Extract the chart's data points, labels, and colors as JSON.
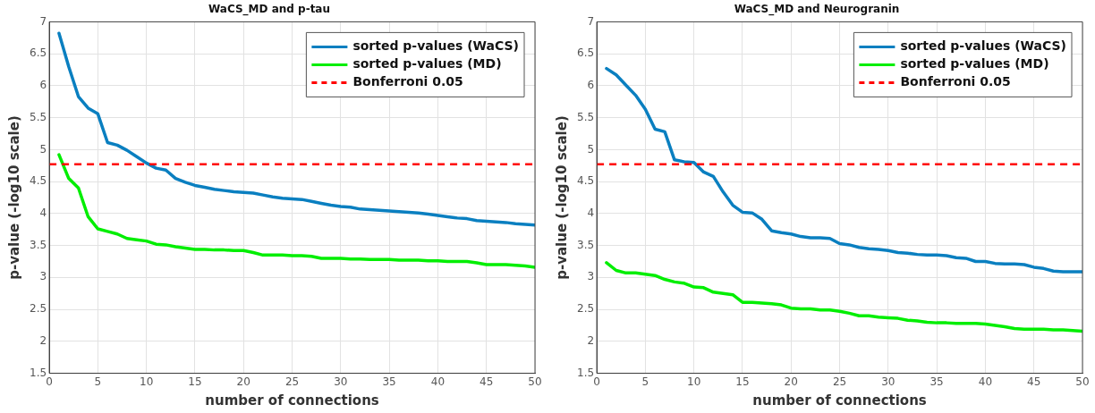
{
  "chart_data": [
    {
      "type": "line",
      "title": "WaCS_MD and p-tau",
      "xlabel": "number of connections",
      "ylabel": "p-value (-log10 scale)",
      "x": [
        1,
        2,
        3,
        4,
        5,
        6,
        7,
        8,
        9,
        10,
        11,
        12,
        13,
        14,
        15,
        16,
        17,
        18,
        19,
        20,
        21,
        22,
        23,
        24,
        25,
        26,
        27,
        28,
        29,
        30,
        31,
        32,
        33,
        34,
        35,
        36,
        37,
        38,
        39,
        40,
        41,
        42,
        43,
        44,
        45,
        46,
        47,
        48,
        49,
        50
      ],
      "series": [
        {
          "name": "sorted p-values (WaCS)",
          "color": "#0a7fc0",
          "values": [
            6.82,
            6.3,
            5.83,
            5.65,
            5.56,
            5.11,
            5.07,
            4.99,
            4.89,
            4.79,
            4.71,
            4.68,
            4.55,
            4.49,
            4.44,
            4.41,
            4.38,
            4.36,
            4.34,
            4.33,
            4.32,
            4.29,
            4.26,
            4.24,
            4.23,
            4.22,
            4.19,
            4.16,
            4.13,
            4.11,
            4.1,
            4.07,
            4.06,
            4.05,
            4.04,
            4.03,
            4.02,
            4.01,
            3.99,
            3.97,
            3.95,
            3.93,
            3.92,
            3.89,
            3.88,
            3.87,
            3.86,
            3.84,
            3.83,
            3.82
          ]
        },
        {
          "name": "sorted p-values (MD)",
          "color": "#00ee00",
          "values": [
            4.92,
            4.55,
            4.4,
            3.95,
            3.76,
            3.72,
            3.68,
            3.61,
            3.59,
            3.57,
            3.52,
            3.51,
            3.48,
            3.46,
            3.44,
            3.44,
            3.43,
            3.43,
            3.42,
            3.42,
            3.39,
            3.35,
            3.35,
            3.35,
            3.34,
            3.34,
            3.33,
            3.3,
            3.3,
            3.3,
            3.29,
            3.29,
            3.28,
            3.28,
            3.28,
            3.27,
            3.27,
            3.27,
            3.26,
            3.26,
            3.25,
            3.25,
            3.25,
            3.23,
            3.2,
            3.2,
            3.2,
            3.19,
            3.18,
            3.16
          ]
        }
      ],
      "ref_lines": [
        {
          "axis": "y",
          "value": 4.77,
          "label": "Bonferroni 0.05",
          "color": "#ff0000",
          "line_style": "dashed"
        }
      ],
      "xlim": [
        0,
        50
      ],
      "xticks": [
        0,
        5,
        10,
        15,
        20,
        25,
        30,
        35,
        40,
        45,
        50
      ],
      "ylim": [
        1.5,
        7
      ],
      "yticks": [
        1.5,
        2,
        2.5,
        3,
        3.5,
        4,
        4.5,
        5,
        5.5,
        6,
        6.5,
        7
      ],
      "grid": true,
      "legend": "top right",
      "line_style": "solid"
    },
    {
      "type": "line",
      "title": "WaCS_MD and Neurogranin",
      "xlabel": "number of connections",
      "ylabel": "p-value (-log10 scale)",
      "x": [
        1,
        2,
        3,
        4,
        5,
        6,
        7,
        8,
        9,
        10,
        11,
        12,
        13,
        14,
        15,
        16,
        17,
        18,
        19,
        20,
        21,
        22,
        23,
        24,
        25,
        26,
        27,
        28,
        29,
        30,
        31,
        32,
        33,
        34,
        35,
        36,
        37,
        38,
        39,
        40,
        41,
        42,
        43,
        44,
        45,
        46,
        47,
        48,
        49,
        50
      ],
      "series": [
        {
          "name": "sorted p-values (WaCS)",
          "color": "#0a7fc0",
          "values": [
            6.27,
            6.17,
            6.01,
            5.85,
            5.63,
            5.32,
            5.28,
            4.84,
            4.81,
            4.8,
            4.65,
            4.58,
            4.34,
            4.13,
            4.02,
            4.01,
            3.91,
            3.73,
            3.7,
            3.68,
            3.64,
            3.62,
            3.62,
            3.61,
            3.53,
            3.51,
            3.47,
            3.45,
            3.44,
            3.42,
            3.39,
            3.38,
            3.36,
            3.35,
            3.35,
            3.34,
            3.31,
            3.3,
            3.25,
            3.25,
            3.22,
            3.21,
            3.21,
            3.2,
            3.16,
            3.14,
            3.1,
            3.09,
            3.09,
            3.09
          ]
        },
        {
          "name": "sorted p-values (MD)",
          "color": "#00ee00",
          "values": [
            3.23,
            3.11,
            3.07,
            3.07,
            3.05,
            3.03,
            2.97,
            2.93,
            2.91,
            2.85,
            2.84,
            2.77,
            2.75,
            2.73,
            2.61,
            2.61,
            2.6,
            2.59,
            2.57,
            2.52,
            2.51,
            2.51,
            2.49,
            2.49,
            2.47,
            2.44,
            2.4,
            2.4,
            2.38,
            2.37,
            2.36,
            2.33,
            2.32,
            2.3,
            2.29,
            2.29,
            2.28,
            2.28,
            2.28,
            2.27,
            2.25,
            2.23,
            2.2,
            2.19,
            2.19,
            2.19,
            2.18,
            2.18,
            2.17,
            2.16
          ]
        }
      ],
      "ref_lines": [
        {
          "axis": "y",
          "value": 4.77,
          "label": "Bonferroni 0.05",
          "color": "#ff0000",
          "line_style": "dashed"
        }
      ],
      "xlim": [
        0,
        50
      ],
      "xticks": [
        0,
        5,
        10,
        15,
        20,
        25,
        30,
        35,
        40,
        45,
        50
      ],
      "ylim": [
        1.5,
        7
      ],
      "yticks": [
        1.5,
        2,
        2.5,
        3,
        3.5,
        4,
        4.5,
        5,
        5.5,
        6,
        6.5,
        7
      ],
      "grid": true,
      "legend": "top right",
      "line_style": "solid"
    }
  ]
}
